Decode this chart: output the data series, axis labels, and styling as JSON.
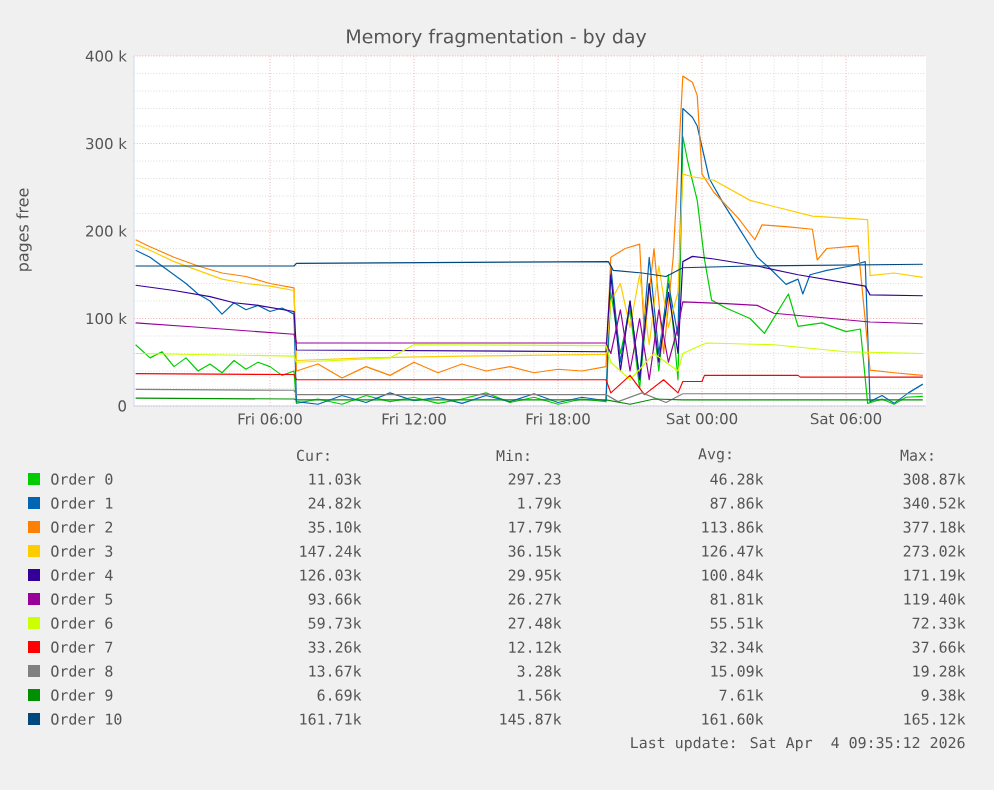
{
  "chart_data": {
    "type": "line",
    "title": "Memory fragmentation - by day",
    "ylabel": "pages free",
    "xlim": [
      "2026-04-03T00:20",
      "2026-04-04T09:20"
    ],
    "ylim": [
      0,
      400000
    ],
    "xticks": [
      {
        "value": "2026-04-03T06:00",
        "label": "Fri 06:00"
      },
      {
        "value": "2026-04-03T12:00",
        "label": "Fri 12:00"
      },
      {
        "value": "2026-04-03T18:00",
        "label": "Fri 18:00"
      },
      {
        "value": "2026-04-04T00:00",
        "label": "Sat 00:00"
      },
      {
        "value": "2026-04-04T06:00",
        "label": "Sat 06:00"
      }
    ],
    "yticks": [
      0,
      {
        "value": 100000,
        "label": "100 k"
      },
      {
        "value": 200000,
        "label": "200 k"
      },
      {
        "value": 300000,
        "label": "300 k"
      },
      {
        "value": 400000,
        "label": "400 k"
      }
    ],
    "grid": true,
    "legend": "bottom",
    "line_style": "solid",
    "marker": "none",
    "series": [
      {
        "name": "Order 0",
        "color": "#00cc00",
        "x": [
          "2026-04-03T00:24",
          "2026-04-03T01:00",
          "2026-04-03T01:30",
          "2026-04-03T02:00",
          "2026-04-03T02:30",
          "2026-04-03T03:00",
          "2026-04-03T03:30",
          "2026-04-03T04:00",
          "2026-04-03T04:30",
          "2026-04-03T05:00",
          "2026-04-03T05:30",
          "2026-04-03T06:00",
          "2026-04-03T06:30",
          "2026-04-03T07:00",
          "2026-04-03T07:06",
          "2026-04-03T08:00",
          "2026-04-03T09:00",
          "2026-04-03T10:00",
          "2026-04-03T11:00",
          "2026-04-03T12:00",
          "2026-04-03T13:00",
          "2026-04-03T14:00",
          "2026-04-03T15:00",
          "2026-04-03T16:00",
          "2026-04-03T17:00",
          "2026-04-03T18:00",
          "2026-04-03T19:00",
          "2026-04-03T20:00",
          "2026-04-03T20:12",
          "2026-04-03T20:36",
          "2026-04-03T21:00",
          "2026-04-03T21:24",
          "2026-04-03T21:48",
          "2026-04-03T22:12",
          "2026-04-03T22:36",
          "2026-04-03T23:00",
          "2026-04-03T23:12",
          "2026-04-03T23:24",
          "2026-04-03T23:48",
          "2026-04-04T00:06",
          "2026-04-04T00:24",
          "2026-04-04T01:00",
          "2026-04-04T02:00",
          "2026-04-04T02:36",
          "2026-04-04T03:36",
          "2026-04-04T04:00",
          "2026-04-04T05:00",
          "2026-04-04T06:00",
          "2026-04-04T06:36",
          "2026-04-04T06:54",
          "2026-04-04T07:30",
          "2026-04-04T08:00",
          "2026-04-04T08:30",
          "2026-04-04T09:12"
        ],
        "values": [
          70000,
          55000,
          62000,
          45000,
          55000,
          40000,
          48000,
          38000,
          52000,
          42000,
          50000,
          45000,
          35000,
          40000,
          3000,
          8000,
          2000,
          12000,
          5000,
          10000,
          3000,
          8000,
          15000,
          4000,
          10000,
          2000,
          8000,
          5000,
          130000,
          60000,
          110000,
          20000,
          140000,
          40000,
          150000,
          30000,
          308000,
          280000,
          235000,
          168000,
          121000,
          112000,
          100000,
          83000,
          128000,
          91000,
          95000,
          85000,
          88000,
          3000,
          8000,
          2000,
          10000,
          11000
        ]
      },
      {
        "name": "Order 1",
        "color": "#0066b3",
        "x": [
          "2026-04-03T00:24",
          "2026-04-03T01:00",
          "2026-04-03T01:30",
          "2026-04-03T02:00",
          "2026-04-03T02:30",
          "2026-04-03T03:00",
          "2026-04-03T03:30",
          "2026-04-03T04:00",
          "2026-04-03T04:30",
          "2026-04-03T05:00",
          "2026-04-03T05:30",
          "2026-04-03T06:00",
          "2026-04-03T06:30",
          "2026-04-03T07:00",
          "2026-04-03T07:06",
          "2026-04-03T08:00",
          "2026-04-03T09:00",
          "2026-04-03T10:00",
          "2026-04-03T11:00",
          "2026-04-03T12:00",
          "2026-04-03T13:00",
          "2026-04-03T14:00",
          "2026-04-03T15:00",
          "2026-04-03T16:00",
          "2026-04-03T17:00",
          "2026-04-03T18:00",
          "2026-04-03T19:00",
          "2026-04-03T20:00",
          "2026-04-03T20:12",
          "2026-04-03T20:36",
          "2026-04-03T21:00",
          "2026-04-03T21:24",
          "2026-04-03T21:48",
          "2026-04-03T22:12",
          "2026-04-03T22:36",
          "2026-04-03T23:00",
          "2026-04-03T23:12",
          "2026-04-03T23:36",
          "2026-04-03T23:48",
          "2026-04-04T00:18",
          "2026-04-04T00:54",
          "2026-04-04T01:30",
          "2026-04-04T02:18",
          "2026-04-04T02:48",
          "2026-04-04T03:30",
          "2026-04-04T04:00",
          "2026-04-04T04:12",
          "2026-04-04T04:30",
          "2026-04-04T05:12",
          "2026-04-04T06:12",
          "2026-04-04T06:48",
          "2026-04-04T07:00",
          "2026-04-04T07:30",
          "2026-04-04T08:00",
          "2026-04-04T08:36",
          "2026-04-04T09:12"
        ],
        "values": [
          178000,
          170000,
          160000,
          150000,
          140000,
          128000,
          120000,
          105000,
          118000,
          110000,
          115000,
          108000,
          112000,
          105000,
          5000,
          2000,
          12000,
          4000,
          15000,
          6000,
          10000,
          3000,
          12000,
          5000,
          14000,
          4000,
          10000,
          6000,
          160000,
          50000,
          120000,
          30000,
          170000,
          60000,
          140000,
          80000,
          340000,
          330000,
          320000,
          260000,
          231000,
          205000,
          170000,
          158000,
          139000,
          145000,
          128000,
          150000,
          155000,
          160000,
          165000,
          5000,
          12000,
          3000,
          15000,
          25000
        ]
      },
      {
        "name": "Order 2",
        "color": "#ff8000",
        "x": [
          "2026-04-03T00:24",
          "2026-04-03T01:00",
          "2026-04-03T02:00",
          "2026-04-03T03:00",
          "2026-04-03T04:00",
          "2026-04-03T05:00",
          "2026-04-03T06:00",
          "2026-04-03T07:00",
          "2026-04-03T07:06",
          "2026-04-03T08:00",
          "2026-04-03T09:00",
          "2026-04-03T10:00",
          "2026-04-03T11:00",
          "2026-04-03T12:00",
          "2026-04-03T13:00",
          "2026-04-03T14:00",
          "2026-04-03T15:00",
          "2026-04-03T16:00",
          "2026-04-03T17:00",
          "2026-04-03T18:00",
          "2026-04-03T19:00",
          "2026-04-03T20:00",
          "2026-04-03T20:12",
          "2026-04-03T20:48",
          "2026-04-03T21:24",
          "2026-04-03T21:36",
          "2026-04-03T22:00",
          "2026-04-03T22:24",
          "2026-04-03T22:48",
          "2026-04-03T23:12",
          "2026-04-03T23:36",
          "2026-04-03T23:48",
          "2026-04-04T00:00",
          "2026-04-04T00:30",
          "2026-04-04T01:30",
          "2026-04-04T02:12",
          "2026-04-04T02:30",
          "2026-04-04T03:30",
          "2026-04-04T04:36",
          "2026-04-04T04:48",
          "2026-04-04T05:12",
          "2026-04-04T06:30",
          "2026-04-04T07:00",
          "2026-04-04T08:00",
          "2026-04-04T09:12"
        ],
        "values": [
          190000,
          182000,
          170000,
          160000,
          152000,
          148000,
          140000,
          135000,
          40000,
          48000,
          32000,
          45000,
          35000,
          50000,
          38000,
          48000,
          40000,
          45000,
          38000,
          42000,
          40000,
          45000,
          170000,
          180000,
          185000,
          80000,
          180000,
          60000,
          170000,
          377000,
          370000,
          355000,
          265000,
          244000,
          215000,
          190000,
          207000,
          205000,
          202000,
          167000,
          180000,
          183000,
          41000,
          38000,
          35000
        ]
      },
      {
        "name": "Order 3",
        "color": "#ffcc00",
        "x": [
          "2026-04-03T00:24",
          "2026-04-03T01:00",
          "2026-04-03T02:00",
          "2026-04-03T03:00",
          "2026-04-03T04:00",
          "2026-04-03T05:00",
          "2026-04-03T06:00",
          "2026-04-03T07:00",
          "2026-04-03T07:06",
          "2026-04-03T10:00",
          "2026-04-03T14:00",
          "2026-04-03T20:00",
          "2026-04-03T20:12",
          "2026-04-03T20:36",
          "2026-04-03T21:00",
          "2026-04-03T21:24",
          "2026-04-03T21:48",
          "2026-04-03T22:12",
          "2026-04-03T22:36",
          "2026-04-03T23:00",
          "2026-04-03T23:12",
          "2026-04-03T23:36",
          "2026-04-04T00:30",
          "2026-04-04T02:00",
          "2026-04-04T03:00",
          "2026-04-04T04:36",
          "2026-04-04T06:54",
          "2026-04-04T07:00",
          "2026-04-04T08:00",
          "2026-04-04T09:12"
        ],
        "values": [
          185000,
          178000,
          165000,
          155000,
          145000,
          140000,
          137000,
          132000,
          52000,
          55000,
          57000,
          59000,
          120000,
          140000,
          90000,
          150000,
          70000,
          160000,
          90000,
          130000,
          265000,
          262000,
          258000,
          235000,
          228000,
          217000,
          213000,
          149000,
          152000,
          147000
        ]
      },
      {
        "name": "Order 4",
        "color": "#330099",
        "x": [
          "2026-04-03T00:24",
          "2026-04-03T02:00",
          "2026-04-03T03:30",
          "2026-04-03T04:30",
          "2026-04-03T05:30",
          "2026-04-03T07:00",
          "2026-04-03T07:06",
          "2026-04-03T20:00",
          "2026-04-03T20:12",
          "2026-04-03T20:36",
          "2026-04-03T21:00",
          "2026-04-03T21:24",
          "2026-04-03T21:48",
          "2026-04-03T22:12",
          "2026-04-03T22:36",
          "2026-04-03T23:00",
          "2026-04-03T23:12",
          "2026-04-03T23:36",
          "2026-04-04T00:30",
          "2026-04-04T02:18",
          "2026-04-04T04:00",
          "2026-04-04T06:48",
          "2026-04-04T07:00",
          "2026-04-04T09:12"
        ],
        "values": [
          138000,
          132000,
          125000,
          118000,
          115000,
          108000,
          64000,
          62000,
          150000,
          40000,
          120000,
          30000,
          140000,
          50000,
          130000,
          60000,
          165000,
          171000,
          168000,
          160000,
          150000,
          137000,
          127000,
          126000
        ]
      },
      {
        "name": "Order 5",
        "color": "#990099",
        "x": [
          "2026-04-03T00:24",
          "2026-04-03T03:00",
          "2026-04-03T05:00",
          "2026-04-03T07:00",
          "2026-04-03T07:06",
          "2026-04-03T20:00",
          "2026-04-03T20:12",
          "2026-04-03T20:36",
          "2026-04-03T21:00",
          "2026-04-03T21:24",
          "2026-04-03T21:48",
          "2026-04-03T22:12",
          "2026-04-03T22:36",
          "2026-04-03T23:00",
          "2026-04-03T23:12",
          "2026-04-04T01:00",
          "2026-04-04T02:18",
          "2026-04-04T03:00",
          "2026-04-04T07:00",
          "2026-04-04T09:12"
        ],
        "values": [
          95000,
          90000,
          86000,
          82000,
          72000,
          72000,
          60000,
          110000,
          40000,
          100000,
          30000,
          110000,
          50000,
          90000,
          119000,
          117000,
          115000,
          106000,
          96000,
          94000
        ]
      },
      {
        "name": "Order 6",
        "color": "#ccff00",
        "x": [
          "2026-04-03T00:24",
          "2026-04-03T07:00",
          "2026-04-03T07:06",
          "2026-04-03T11:00",
          "2026-04-03T12:00",
          "2026-04-03T20:00",
          "2026-04-03T20:12",
          "2026-04-03T21:00",
          "2026-04-03T22:00",
          "2026-04-03T23:00",
          "2026-04-03T23:12",
          "2026-04-04T00:00",
          "2026-04-04T00:12",
          "2026-04-04T03:00",
          "2026-04-04T06:00",
          "2026-04-04T09:12"
        ],
        "values": [
          60000,
          57000,
          50000,
          55000,
          70000,
          69000,
          50000,
          30000,
          60000,
          40000,
          60000,
          70000,
          72000,
          70000,
          62000,
          60000
        ]
      },
      {
        "name": "Order 7",
        "color": "#ff0000",
        "x": [
          "2026-04-03T00:24",
          "2026-04-03T07:00",
          "2026-04-03T07:06",
          "2026-04-03T20:00",
          "2026-04-03T20:12",
          "2026-04-03T21:00",
          "2026-04-03T21:36",
          "2026-04-03T22:24",
          "2026-04-03T23:00",
          "2026-04-03T23:12",
          "2026-04-04T00:00",
          "2026-04-04T00:06",
          "2026-04-04T04:00",
          "2026-04-04T04:06",
          "2026-04-04T09:12"
        ],
        "values": [
          37000,
          36000,
          30000,
          30000,
          15000,
          35000,
          13000,
          30000,
          15000,
          28000,
          28000,
          35000,
          35000,
          33000,
          33000
        ]
      },
      {
        "name": "Order 8",
        "color": "#808080",
        "x": [
          "2026-04-03T00:24",
          "2026-04-03T07:00",
          "2026-04-03T07:06",
          "2026-04-03T20:00",
          "2026-04-03T20:30",
          "2026-04-03T21:30",
          "2026-04-03T22:30",
          "2026-04-03T23:12",
          "2026-04-04T09:12"
        ],
        "values": [
          19000,
          18000,
          13000,
          13000,
          5000,
          15000,
          4000,
          14000,
          14000
        ]
      },
      {
        "name": "Order 9",
        "color": "#008f00",
        "x": [
          "2026-04-03T00:24",
          "2026-04-03T07:00",
          "2026-04-03T07:06",
          "2026-04-03T20:00",
          "2026-04-03T21:00",
          "2026-04-03T22:00",
          "2026-04-03T23:12",
          "2026-04-04T09:12"
        ],
        "values": [
          9000,
          8000,
          7000,
          7000,
          2000,
          8000,
          7000,
          7000
        ]
      },
      {
        "name": "Order 10",
        "color": "#00487d",
        "x": [
          "2026-04-03T00:24",
          "2026-04-03T07:00",
          "2026-04-03T07:06",
          "2026-04-03T20:06",
          "2026-04-03T20:18",
          "2026-04-03T21:30",
          "2026-04-03T22:30",
          "2026-04-03T23:12",
          "2026-04-04T02:00",
          "2026-04-04T09:12"
        ],
        "values": [
          160000,
          160000,
          163000,
          165000,
          155000,
          152000,
          148000,
          158000,
          160000,
          162000
        ]
      }
    ],
    "annotations": [
      "Cur:",
      "Min:",
      "Avg:",
      "Max:",
      "11.03k",
      "297.23",
      "46.28k",
      "308.87k",
      "24.82k",
      "1.79k",
      "87.86k",
      "340.52k",
      "35.10k",
      "17.79k",
      "113.86k",
      "377.18k",
      "147.24k",
      "36.15k",
      "126.47k",
      "273.02k",
      "126.03k",
      "29.95k",
      "100.84k",
      "171.19k",
      "93.66k",
      "26.27k",
      "81.81k",
      "119.40k",
      "59.73k",
      "27.48k",
      "55.51k",
      "72.33k",
      "33.26k",
      "12.12k",
      "32.34k",
      "37.66k",
      "13.67k",
      "3.28k",
      "15.09k",
      "19.28k",
      "6.69k",
      "1.56k",
      "7.61k",
      "9.38k",
      "161.71k",
      "145.87k",
      "161.60k",
      "165.12k",
      "Last update: Sat Apr  4 09:35:12 2026"
    ]
  }
}
